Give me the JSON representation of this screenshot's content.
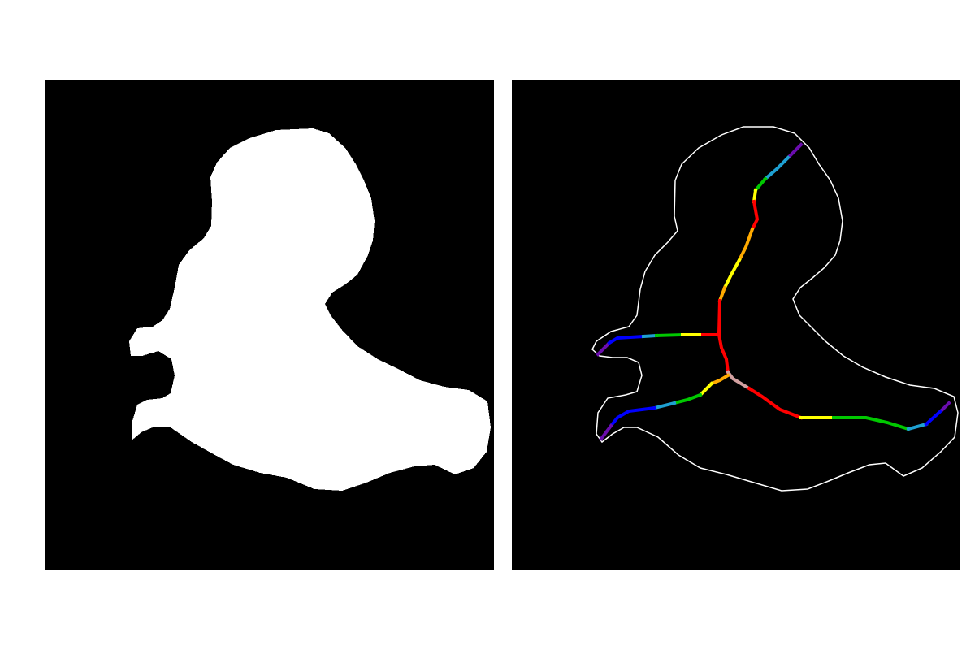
{
  "figure": {
    "panels": [
      {
        "id": "mask",
        "content": "binary-mask",
        "background": "#000000",
        "foreground": "#ffffff"
      },
      {
        "id": "skeleton",
        "content": "outline-with-skeleton",
        "background": "#000000",
        "outline_color": "#ffffff"
      }
    ],
    "colors": {
      "page_background": "#ffffff",
      "skeleton_branch_colors": [
        "#6a0dad",
        "#0000ff",
        "#1ea0d2",
        "#00c800",
        "#ffff00",
        "#ffaa00",
        "#ff0000",
        "#d2a0a0"
      ]
    }
  }
}
